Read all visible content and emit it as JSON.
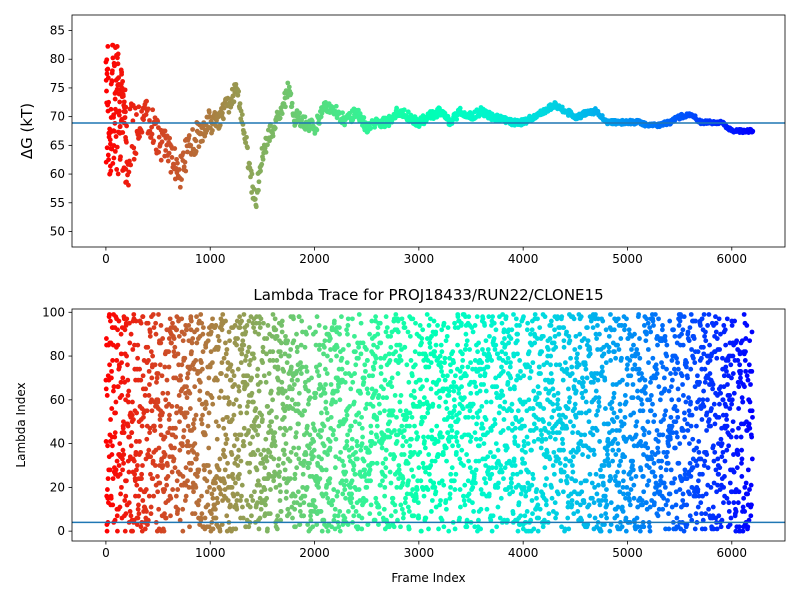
{
  "chart_data": [
    {
      "type": "scatter",
      "title": "",
      "xlabel": "",
      "ylabel": "ΔG (kT)",
      "xlim": [
        -325,
        6510
      ],
      "ylim": [
        47.3,
        87.7
      ],
      "xticks": [
        0,
        1000,
        2000,
        3000,
        4000,
        5000,
        6000
      ],
      "yticks": [
        50,
        55,
        60,
        65,
        70,
        75,
        80,
        85
      ],
      "reference_line": 68.9,
      "grid": false,
      "colormap": "rainbow (red at start, violet at end)",
      "line_color": "#1f77b4",
      "series": [
        {
          "x": [
            0,
            100,
            200,
            300,
            400,
            500,
            600,
            700,
            800,
            900,
            1000,
            1100,
            1200,
            1250,
            1300,
            1400,
            1430,
            1500,
            1600,
            1700,
            1750,
            1800,
            1900,
            2000,
            2100,
            2200,
            2300,
            2400,
            2500,
            2600,
            2700,
            2800,
            2900,
            3000,
            3100,
            3200,
            3300,
            3400,
            3500,
            3600,
            3700,
            3800,
            3900,
            4000,
            4100,
            4200,
            4300,
            4400,
            4500,
            4600,
            4700,
            4800,
            4900,
            5000,
            5100,
            5200,
            5300,
            5400,
            5500,
            5600,
            5700,
            5800,
            5900,
            6000,
            6100,
            6200
          ],
          "y": [
            70,
            72,
            65,
            68,
            70,
            66,
            64,
            60,
            65,
            67,
            69,
            70,
            73,
            75,
            70,
            58,
            55,
            64,
            68,
            72,
            75,
            70,
            69,
            68,
            72,
            71,
            69,
            71,
            68,
            69,
            69,
            71,
            70,
            69,
            70,
            71,
            69,
            71,
            70,
            71,
            70,
            69.5,
            69,
            69,
            70,
            71,
            72,
            71,
            70,
            70.5,
            71,
            69,
            69,
            69,
            69,
            68.5,
            68.5,
            69,
            70,
            70.5,
            69,
            69,
            69,
            67.5,
            67.5,
            67.5
          ],
          "spread": [
            12,
            12,
            8,
            4,
            3,
            3,
            3,
            3,
            3,
            2.5,
            2.5,
            2,
            1.5,
            1.5,
            1.5,
            2.5,
            2,
            2,
            1.5,
            1.5,
            1.5,
            1.5,
            1.2,
            1.2,
            1,
            1,
            1,
            1,
            1,
            0.8,
            0.8,
            0.8,
            0.8,
            0.8,
            0.8,
            0.8,
            0.7,
            0.7,
            0.7,
            0.7,
            0.6,
            0.5,
            0.5,
            0.5,
            0.5,
            0.5,
            0.5,
            0.5,
            0.5,
            0.5,
            0.5,
            0.4,
            0.4,
            0.4,
            0.4,
            0.3,
            0.3,
            0.4,
            0.4,
            0.4,
            0.3,
            0.3,
            0.3,
            0.3,
            0.3,
            0.3
          ]
        }
      ]
    },
    {
      "type": "scatter",
      "title": "Lambda Trace for PROJ18433/RUN22/CLONE15",
      "xlabel": "Frame Index",
      "ylabel": "Lambda Index",
      "xlim": [
        -325,
        6510
      ],
      "ylim": [
        -4.5,
        101.5
      ],
      "xticks": [
        0,
        1000,
        2000,
        3000,
        4000,
        5000,
        6000
      ],
      "yticks": [
        0,
        20,
        40,
        60,
        80,
        100
      ],
      "reference_line": 4,
      "grid": false,
      "colormap": "rainbow (red at start, violet at end)",
      "line_color": "#1f77b4",
      "series": [
        {
          "x_range": [
            0,
            6200
          ],
          "y_range": [
            0,
            99
          ],
          "distribution": "dense, roughly uniform over the lambda range at every frame"
        }
      ]
    }
  ]
}
